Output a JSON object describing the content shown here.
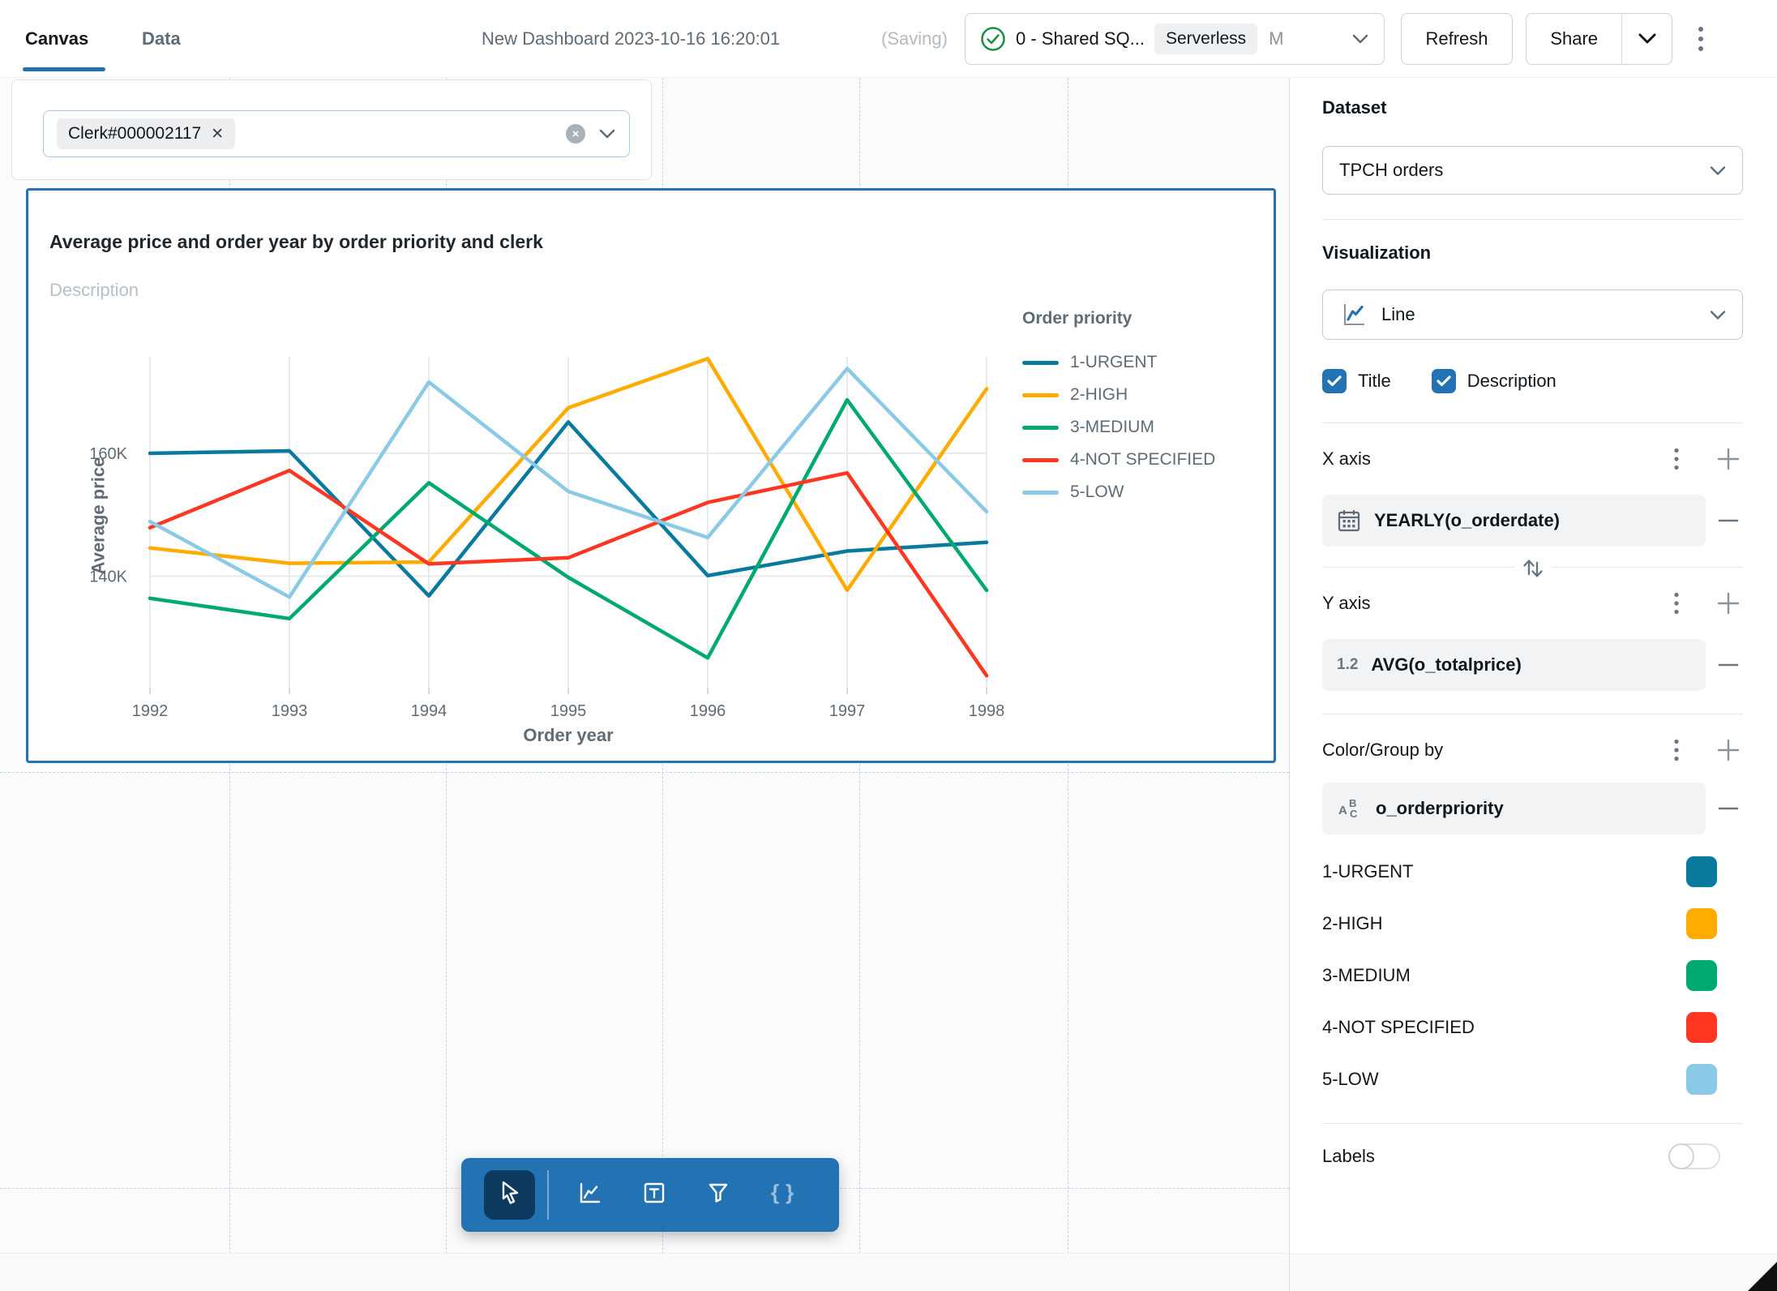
{
  "topbar": {
    "tabs": [
      {
        "label": "Canvas",
        "active": true
      },
      {
        "label": "Data",
        "active": false
      }
    ],
    "title": "New Dashboard 2023-10-16 16:20:01",
    "saving_indicator": "(Saving)",
    "warehouse": {
      "name": "0 - Shared SQ...",
      "badge": "Serverless",
      "size_label": "M",
      "status_color": "#1E8E3E"
    },
    "refresh_label": "Refresh",
    "share_label": "Share"
  },
  "canvas": {
    "filter": {
      "value": "Clerk#000002117",
      "remove_glyph": "✕",
      "clear_glyph": "×"
    }
  },
  "chart_data": {
    "type": "line",
    "title": "Average price and order year by order priority and clerk",
    "description_placeholder": "Description",
    "xlabel": "Order year",
    "ylabel": "Average price",
    "x": [
      1992,
      1993,
      1994,
      1995,
      1996,
      1997,
      1998
    ],
    "series": [
      {
        "name": "1-URGENT",
        "color": "#077A9D",
        "values": [
          160000,
          160400,
          136800,
          165100,
          140100,
          144100,
          145500
        ]
      },
      {
        "name": "2-HIGH",
        "color": "#FFAB00",
        "values": [
          144600,
          142100,
          142300,
          167400,
          175400,
          137700,
          170500
        ]
      },
      {
        "name": "3-MEDIUM",
        "color": "#00A972",
        "values": [
          136400,
          133100,
          155200,
          139800,
          126700,
          168700,
          137700
        ]
      },
      {
        "name": "4-NOT SPECIFIED",
        "color": "#FF3621",
        "values": [
          147900,
          157200,
          142000,
          143000,
          152000,
          156800,
          123800
        ]
      },
      {
        "name": "5-LOW",
        "color": "#8BCAE7",
        "values": [
          148900,
          136600,
          171600,
          153800,
          146300,
          173800,
          150500
        ]
      }
    ],
    "ylim": [
      122000,
      176000
    ],
    "yticks": [
      {
        "value": 160000,
        "label": "160K"
      },
      {
        "value": 140000,
        "label": "140K"
      }
    ],
    "legend_title": "Order priority",
    "legend_position": "right",
    "grid": true
  },
  "sidebar": {
    "dataset": {
      "label": "Dataset",
      "value": "TPCH orders"
    },
    "visualization": {
      "label": "Visualization",
      "value": "Line"
    },
    "options": [
      {
        "label": "Title",
        "checked": true
      },
      {
        "label": "Description",
        "checked": true
      }
    ],
    "x_axis": {
      "label": "X axis",
      "field": "YEARLY(o_orderdate)",
      "field_type": "date"
    },
    "y_axis": {
      "label": "Y axis",
      "field": "AVG(o_totalprice)",
      "field_type": "number",
      "type_icon_label": "1.2"
    },
    "color_group": {
      "label": "Color/Group by",
      "field": "o_orderpriority",
      "field_type": "text",
      "entries": [
        {
          "label": "1-URGENT",
          "color": "#077A9D"
        },
        {
          "label": "2-HIGH",
          "color": "#FFAB00"
        },
        {
          "label": "3-MEDIUM",
          "color": "#00A972"
        },
        {
          "label": "4-NOT SPECIFIED",
          "color": "#FF3621"
        },
        {
          "label": "5-LOW",
          "color": "#8BCAE7"
        }
      ]
    },
    "labels_toggle": {
      "label": "Labels",
      "enabled": false
    }
  },
  "toolbar": {
    "tools": [
      {
        "name": "select",
        "active": true
      },
      {
        "name": "add-visualization",
        "active": false
      },
      {
        "name": "add-text",
        "active": false
      },
      {
        "name": "add-filter",
        "active": false
      },
      {
        "name": "add-parameter",
        "active": false
      }
    ]
  }
}
